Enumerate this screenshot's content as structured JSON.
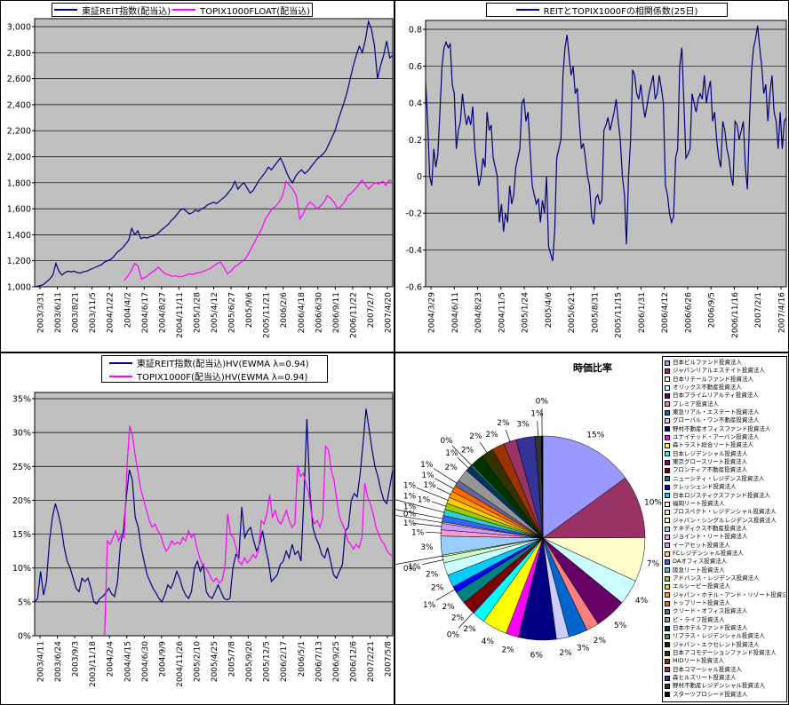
{
  "chart_data": [
    {
      "id": "reit_index",
      "type": "line",
      "position": "top-left",
      "ylim": [
        1000,
        3000
      ],
      "grid": true,
      "legend_position": "top",
      "y_ticks": [
        {
          "label": "3,000",
          "value": 3000
        },
        {
          "label": "2,800",
          "value": 2800
        },
        {
          "label": "2,600",
          "value": 2600
        },
        {
          "label": "2,400",
          "value": 2400
        },
        {
          "label": "2,200",
          "value": 2200
        },
        {
          "label": "2,000",
          "value": 2000
        },
        {
          "label": "1,800",
          "value": 1800
        },
        {
          "label": "1,600",
          "value": 1600
        },
        {
          "label": "1,400",
          "value": 1400
        },
        {
          "label": "1,200",
          "value": 1200
        },
        {
          "label": "1,000",
          "value": 1000
        }
      ],
      "x_labels": [
        "2003/3/31",
        "2003/6/11",
        "2003/8/21",
        "2003/11/5",
        "2004/1/22",
        "2004/4/2",
        "2004/6/17",
        "2004/8/27",
        "2004/11/11",
        "2005/1/28",
        "2005/4/12",
        "2005/6/27",
        "2005/9/6",
        "2005/11/21",
        "2006/2/6",
        "2006/4/18",
        "2006/6/30",
        "2006/9/11",
        "2006/11/22",
        "2007/2/7",
        "2007/4/20"
      ],
      "series": [
        {
          "name": "東証REIT指数(配当込)",
          "color": "#000080",
          "values": [
            1000,
            1005,
            1010,
            1020,
            1040,
            1060,
            1090,
            1180,
            1120,
            1090,
            1110,
            1120,
            1115,
            1120,
            1110,
            1105,
            1115,
            1120,
            1130,
            1140,
            1150,
            1160,
            1170,
            1190,
            1200,
            1210,
            1230,
            1260,
            1280,
            1300,
            1330,
            1360,
            1450,
            1400,
            1430,
            1370,
            1380,
            1375,
            1385,
            1390,
            1400,
            1420,
            1440,
            1460,
            1480,
            1510,
            1530,
            1560,
            1590,
            1600,
            1580,
            1560,
            1570,
            1590,
            1580,
            1600,
            1610,
            1630,
            1640,
            1650,
            1640,
            1660,
            1680,
            1700,
            1730,
            1760,
            1810,
            1750,
            1780,
            1800,
            1760,
            1720,
            1740,
            1780,
            1820,
            1850,
            1880,
            1920,
            1900,
            1930,
            1960,
            1990,
            1940,
            1880,
            1830,
            1800,
            1850,
            1880,
            1900,
            1870,
            1890,
            1920,
            1950,
            1980,
            2000,
            2020,
            2050,
            2100,
            2150,
            2200,
            2280,
            2350,
            2420,
            2500,
            2600,
            2700,
            2780,
            2850,
            2800,
            2900,
            3040,
            2980,
            2850,
            2600,
            2700,
            2780,
            2890,
            2760,
            2780
          ]
        },
        {
          "name": "TOPIX1000FLOAT(配当込)",
          "color": "#FF00FF",
          "values": [
            null,
            null,
            null,
            null,
            null,
            null,
            null,
            null,
            null,
            null,
            null,
            null,
            null,
            null,
            null,
            null,
            null,
            null,
            null,
            null,
            null,
            null,
            null,
            null,
            null,
            null,
            1050,
            1080,
            1120,
            1180,
            1160,
            1060,
            1070,
            1090,
            1110,
            1130,
            1150,
            1120,
            1100,
            1090,
            1080,
            1085,
            1075,
            1080,
            1090,
            1100,
            1095,
            1105,
            1110,
            1120,
            1130,
            1140,
            1160,
            1180,
            1190,
            1150,
            1100,
            1120,
            1150,
            1170,
            1190,
            1210,
            1250,
            1300,
            1350,
            1400,
            1450,
            1520,
            1560,
            1600,
            1620,
            1650,
            1700,
            1810,
            1780,
            1750,
            1700,
            1520,
            1560,
            1620,
            1650,
            1630,
            1600,
            1620,
            1650,
            1700,
            1680,
            1650,
            1600,
            1620,
            1650,
            1700,
            1720,
            1750,
            1780,
            1820,
            1790,
            1750,
            1780,
            1800,
            1790,
            1810,
            1780,
            1820,
            1810
          ]
        }
      ]
    },
    {
      "id": "correlation",
      "type": "line",
      "position": "top-right",
      "ylim": [
        -0.6,
        0.8
      ],
      "grid": true,
      "legend_position": "top",
      "y_ticks": [
        {
          "label": "0.8",
          "value": 0.8
        },
        {
          "label": "0.6",
          "value": 0.6
        },
        {
          "label": "0.4",
          "value": 0.4
        },
        {
          "label": "0.2",
          "value": 0.2
        },
        {
          "label": "0",
          "value": 0
        },
        {
          "label": "-0.2",
          "value": -0.2
        },
        {
          "label": "-0.4",
          "value": -0.4
        },
        {
          "label": "-0.6",
          "value": -0.6
        }
      ],
      "x_labels": [
        "2004/3/29",
        "2004/6/11",
        "2004/8/23",
        "2004/11/5",
        "2005/1/24",
        "2005/4/6",
        "2005/6/21",
        "2005/8/31",
        "2005/11/15",
        "2006/1/31",
        "2006/4/12",
        "2006/6/26",
        "2006/9/5",
        "2006/11/16",
        "2007/2/1",
        "2007/4/16"
      ],
      "series": [
        {
          "name": "REITとTOPIX1000Fの相関係数(25日)",
          "color": "#000080",
          "values": [
            0.52,
            0.3,
            0,
            -0.05,
            0.15,
            0.05,
            0.12,
            0.35,
            0.6,
            0.7,
            0.73,
            0.7,
            0.72,
            0.5,
            0.45,
            0.15,
            0.25,
            0.3,
            0.45,
            0.35,
            0.28,
            0.33,
            0.28,
            0.38,
            0.15,
            0.05,
            -0.05,
            0,
            0.1,
            0.05,
            0.35,
            0.25,
            0.28,
            0.1,
            0.05,
            0,
            -0.25,
            -0.15,
            -0.3,
            -0.2,
            -0.25,
            -0.05,
            -0.15,
            -0.1,
            0.05,
            0.1,
            0.15,
            0.4,
            0.42,
            0.3,
            0.35,
            0.15,
            -0.05,
            -0.1,
            -0.15,
            -0.12,
            -0.25,
            -0.13,
            -0.2,
            0,
            -0.38,
            -0.42,
            -0.46,
            -0.3,
            0.1,
            0.15,
            0.2,
            0.55,
            0.7,
            0.77,
            0.65,
            0.55,
            0.6,
            0.45,
            0.48,
            0.3,
            0.15,
            0.18,
            0.1,
            0,
            -0.05,
            -0.22,
            -0.26,
            -0.12,
            -0.1,
            -0.15,
            -0.13,
            0.25,
            0.28,
            0.32,
            0.25,
            0.3,
            0.35,
            0.42,
            0.3,
            0.2,
            0,
            -0.1,
            -0.37,
            0,
            0.2,
            0.58,
            0.55,
            0.45,
            0.42,
            0.5,
            0.4,
            0.32,
            0.38,
            0.45,
            0.5,
            0.55,
            0.42,
            0.45,
            0.55,
            0.48,
            0.4,
            -0.05,
            -0.1,
            -0.2,
            -0.25,
            -0.22,
            0.1,
            0.15,
            0.6,
            0.7,
            0.4,
            0.1,
            0.12,
            0.15,
            0.45,
            0.4,
            0.35,
            0.42,
            0.45,
            0.42,
            0.55,
            0.4,
            0.47,
            0.52,
            0.3,
            0.35,
            0.2,
            0.1,
            0.05,
            0.3,
            0.25,
            0.15,
            0.1,
            0,
            -0.05,
            0.3,
            0.28,
            0.2,
            0.25,
            0.3,
            0.05,
            -0.07,
            0.3,
            0.57,
            0.7,
            0.75,
            0.82,
            0.7,
            0.6,
            0.45,
            0.5,
            0.3,
            0.45,
            0.55,
            0.35,
            0.3,
            0.15,
            0.35,
            0.15,
            0.3,
            0.32
          ]
        }
      ]
    },
    {
      "id": "volatility",
      "type": "line",
      "position": "bottom-left",
      "ylim": [
        0,
        35
      ],
      "grid": true,
      "legend_position": "top",
      "y_ticks": [
        {
          "label": "35%",
          "value": 35
        },
        {
          "label": "30%",
          "value": 30
        },
        {
          "label": "25%",
          "value": 25
        },
        {
          "label": "20%",
          "value": 20
        },
        {
          "label": "15%",
          "value": 15
        },
        {
          "label": "10%",
          "value": 10
        },
        {
          "label": "5%",
          "value": 5
        },
        {
          "label": "0%",
          "value": 0
        }
      ],
      "x_labels": [
        "2003/4/11",
        "2003/6/24",
        "2003/9/3",
        "2003/11/18",
        "2004/2/4",
        "2004/4/15",
        "2004/6/30",
        "2004/9/9",
        "2004/11/26",
        "2005/2/10",
        "2005/4/25",
        "2005/7/8",
        "2005/9/20",
        "2005/12/5",
        "2006/2/17",
        "2006/5/1",
        "2006/7/13",
        "2006/9/25",
        "2006/12/6",
        "2007/2/21",
        "2007/5/8"
      ],
      "series": [
        {
          "name": "東証REIT指数(配当込)HV(EWMA λ=0.94)",
          "color": "#000080",
          "values": [
            5,
            5.5,
            9.5,
            6,
            8,
            14,
            17.5,
            19.5,
            18,
            16,
            13,
            11,
            10,
            8.5,
            7,
            6.5,
            8.5,
            8,
            8.5,
            7,
            5,
            4.7,
            5.5,
            5.8,
            6.3,
            7,
            6.2,
            5.8,
            8,
            13.5,
            15.5,
            20.5,
            24.5,
            23,
            17.5,
            16,
            13,
            11,
            9,
            8,
            7,
            6.3,
            5.5,
            5,
            6,
            7.5,
            7,
            8,
            9.5,
            8.5,
            7,
            6,
            5.5,
            6.5,
            10,
            11,
            9.5,
            10.5,
            6.5,
            5.8,
            5.5,
            6.5,
            7.5,
            6.5,
            5.5,
            5.3,
            5.5,
            10,
            12,
            11.5,
            19,
            14.5,
            15.5,
            16,
            14,
            12.5,
            13.5,
            15.5,
            13,
            11,
            8,
            8.5,
            9,
            10.5,
            11,
            12.5,
            11.5,
            13.5,
            12,
            12.5,
            11,
            20.5,
            32,
            21.5,
            16,
            14.5,
            13.5,
            12,
            11.5,
            13,
            11,
            9,
            8.5,
            9.5,
            10.5,
            15.5,
            16,
            20,
            21,
            20.5,
            24,
            28.5,
            33.5,
            30.5,
            27.5,
            25,
            23.5,
            21.5,
            20,
            19.5,
            22,
            24.5
          ]
        },
        {
          "name": "TOPIX1000F(配当込)HV(EWMA λ=0.94)",
          "color": "#FF00FF",
          "values": [
            null,
            null,
            null,
            null,
            null,
            null,
            null,
            null,
            null,
            null,
            null,
            null,
            null,
            null,
            null,
            null,
            null,
            null,
            null,
            null,
            null,
            null,
            null,
            null,
            null,
            0,
            14,
            13.5,
            14.5,
            15.5,
            14,
            15,
            14.5,
            25,
            31,
            29.5,
            26.5,
            24,
            21.5,
            20,
            18.5,
            17,
            16,
            16.5,
            15.5,
            15,
            13.5,
            12.5,
            13,
            14,
            13.5,
            13.8,
            13.5,
            14.5,
            14,
            15.5,
            14.5,
            15,
            13,
            11.5,
            10.5,
            10,
            9.5,
            8.5,
            8,
            8.5,
            7.8,
            8.2,
            10,
            18,
            15,
            14.5,
            13,
            11,
            10.5,
            11.5,
            10.8,
            11.2,
            12,
            11.5,
            12.5,
            17,
            16.5,
            18,
            20.8,
            17.5,
            18.5,
            17,
            16.5,
            17.5,
            18.5,
            17,
            16,
            16.5,
            25.2,
            23.5,
            24,
            22.5,
            21,
            18,
            16.5,
            17,
            16,
            17.5,
            28,
            27.5,
            24.5,
            23,
            20,
            17.5,
            16.5,
            15.5,
            14,
            13.5,
            12.8,
            13.5,
            13,
            14.5,
            22.5,
            20.5,
            19.5,
            18,
            16,
            15,
            14,
            13.5,
            12.5,
            12,
            11.8
          ]
        }
      ]
    },
    {
      "id": "market_cap",
      "type": "pie",
      "position": "bottom-right",
      "title": "時価比率",
      "legend_position": "right",
      "labels": [
        "日本ビルファンド投資法人",
        "ジャパンリアルエステイト投資法人",
        "日本リテールファンド投資法人",
        "オリックス不動産投資法人",
        "日本プライムリアルティ投資法人",
        "プレミア投資法人",
        "東急リアル・エステート投資法人",
        "グローバル・ワン不動産投資法人",
        "野村不動産オフィスファンド投資法人",
        "ユナイテッド・アーバン投資法人",
        "森トラスト総合リート投資法人",
        "日本レジデンシャル投資法人",
        "東京グロースリート投資法人",
        "フロンティア不動産投資法人",
        "ニューシティ・レジデンス投資法人",
        "クレッシェンド投資法人",
        "日本ロジスティクスファンド投資法人",
        "福岡リート投資法人",
        "プロスペクト・レジデンシャル投資法人",
        "ジャパン・シングルレジデンス投資法人",
        "ケネディクス不動産投資法人",
        "ジョイント・リート投資法人",
        "イーアセット投資法人",
        "FCレジデンシャル投資法人",
        "DAオフィス投資法人",
        "阪急リート投資法人",
        "アドバンス・レジデンス投資法人",
        "エルシーピー投資法人",
        "ジャパン・ホテル・アンド・リゾート投資法人",
        "トップリート投資法人",
        "クリード・オフィス投資法人",
        "ビ・ライフ投資法人",
        "日本ホテルファンド投資法人",
        "リプラス・レジデンシャル投資法人",
        "ジャパン・エクセレント投資法人",
        "日本アコモデーションファンド投資法人",
        "MIDリート投資法人",
        "日本コマーシャル投資法人",
        "森ヒルズリート投資法人",
        "野村不動産レジデンシャル投資法人",
        "スターツプロシード投資法人"
      ],
      "values": [
        15,
        10,
        7,
        4,
        5,
        2,
        3,
        2,
        6,
        2,
        4,
        2,
        0,
        2,
        2,
        1,
        2,
        2,
        1,
        0,
        3,
        1,
        1,
        0,
        1,
        1,
        1,
        1,
        1,
        1,
        1,
        2,
        1,
        0,
        2,
        2,
        2,
        2,
        3,
        1,
        0
      ],
      "colors": [
        "#9999FF",
        "#993366",
        "#FFFFCC",
        "#CCFFFF",
        "#660066",
        "#FF8080",
        "#0066CC",
        "#CCCCFF",
        "#000080",
        "#FF00FF",
        "#FFFF00",
        "#00FFFF",
        "#800080",
        "#800000",
        "#008080",
        "#0000FF",
        "#00CCFF",
        "#CCFFFF",
        "#CCFFCC",
        "#FFFF99",
        "#99CCFF",
        "#FF99CC",
        "#CC99FF",
        "#FFCC99",
        "#3366FF",
        "#33CCCC",
        "#99CC00",
        "#FFCC00",
        "#FF9900",
        "#FF6600",
        "#666699",
        "#969696",
        "#003366",
        "#339966",
        "#003300",
        "#333300",
        "#993300",
        "#993366",
        "#333399",
        "#333333",
        "#000000"
      ]
    }
  ]
}
